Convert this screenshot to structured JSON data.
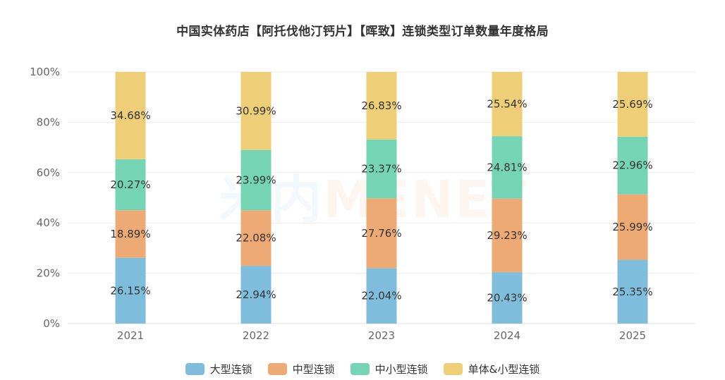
{
  "title": "中国实体药店【阿托伐他汀钙片】【晖致】连锁类型订单数量年度格局",
  "watermark": {
    "cn": "米内",
    "en": "MENET"
  },
  "chart_data": {
    "type": "bar",
    "stacked": true,
    "percent": true,
    "categories": [
      "2021",
      "2022",
      "2023",
      "2024",
      "2025"
    ],
    "ylim": [
      0,
      100
    ],
    "yticks": [
      "0%",
      "20%",
      "40%",
      "60%",
      "80%",
      "100%"
    ],
    "ytick_values": [
      0,
      20,
      40,
      60,
      80,
      100
    ],
    "grid": true,
    "legend_position": "bottom",
    "series": [
      {
        "name": "大型连锁",
        "color": "#7ebedc",
        "values": [
          26.15,
          22.94,
          22.04,
          20.43,
          25.35
        ],
        "labels": [
          "26.15%",
          "22.94%",
          "22.04%",
          "20.43%",
          "25.35%"
        ]
      },
      {
        "name": "中型连锁",
        "color": "#eeaa74",
        "values": [
          18.89,
          22.08,
          27.76,
          29.23,
          25.99
        ],
        "labels": [
          "18.89%",
          "22.08%",
          "27.76%",
          "29.23%",
          "25.99%"
        ]
      },
      {
        "name": "中小型连锁",
        "color": "#74d4b3",
        "values": [
          20.27,
          23.99,
          23.37,
          24.81,
          22.96
        ],
        "labels": [
          "20.27%",
          "23.99%",
          "23.37%",
          "24.81%",
          "22.96%"
        ]
      },
      {
        "name": "单体&小型连锁",
        "color": "#eecf77",
        "values": [
          34.68,
          30.99,
          26.83,
          25.54,
          25.69
        ],
        "labels": [
          "34.68%",
          "30.99%",
          "26.83%",
          "25.54%",
          "25.69%"
        ]
      }
    ]
  }
}
